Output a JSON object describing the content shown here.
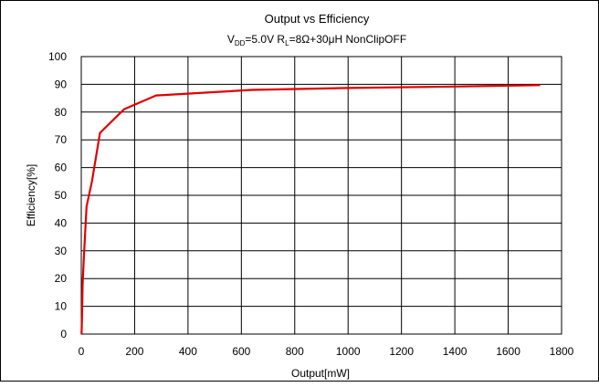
{
  "chart_data": {
    "type": "line",
    "title": "Output vs Efficiency",
    "subtitle": {
      "v": "V",
      "v_sub": "DD",
      "mid": "=5.0V R",
      "r_sub": "L",
      "tail": "=8Ω+30μH NonClipOFF"
    },
    "xlabel": "Output[mW]",
    "ylabel": "Efficiency[%]",
    "xlim": [
      0,
      1800
    ],
    "ylim": [
      0,
      100
    ],
    "x_ticks": [
      0,
      200,
      400,
      600,
      800,
      1000,
      1200,
      1400,
      1600,
      1800
    ],
    "y_ticks": [
      0,
      10,
      20,
      30,
      40,
      50,
      60,
      70,
      80,
      90,
      100
    ],
    "grid": true,
    "series": [
      {
        "color": "#e00000",
        "points": [
          [
            1,
            0
          ],
          [
            3,
            7
          ],
          [
            5,
            18
          ],
          [
            10,
            28
          ],
          [
            20,
            46
          ],
          [
            40,
            55
          ],
          [
            70,
            72.5
          ],
          [
            160,
            81
          ],
          [
            280,
            86
          ],
          [
            640,
            88
          ],
          [
            1000,
            88.7
          ],
          [
            1400,
            89.2
          ],
          [
            1720,
            89.7
          ]
        ]
      }
    ]
  }
}
